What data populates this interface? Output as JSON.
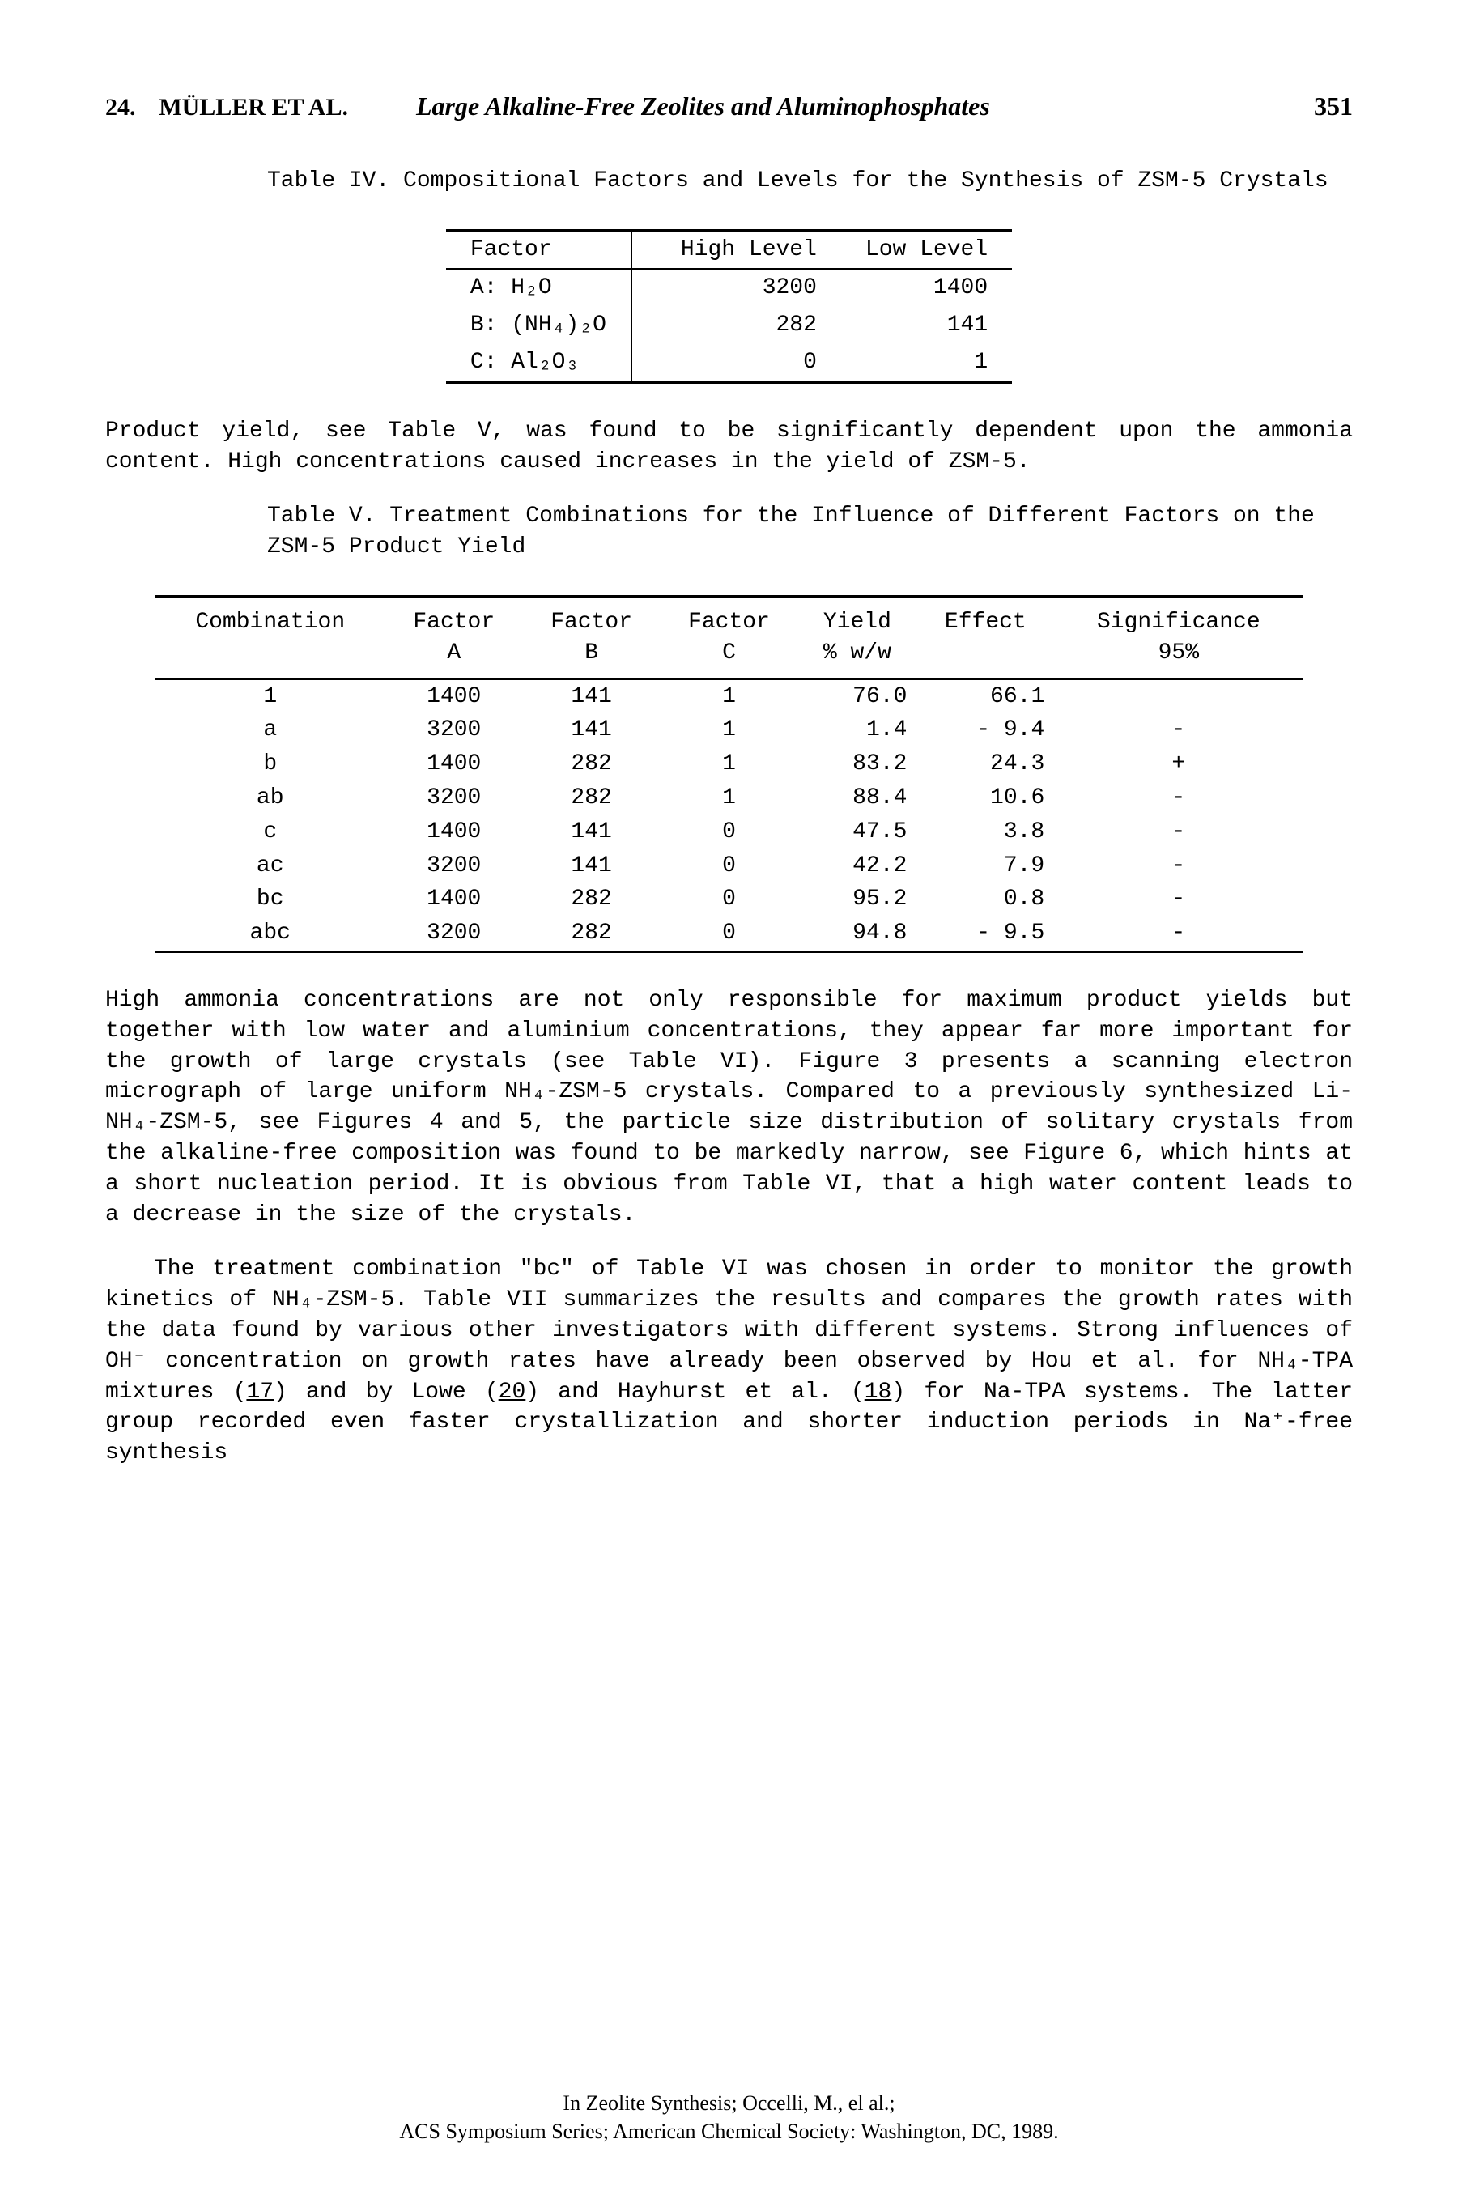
{
  "header": {
    "chapter": "24.",
    "authors": "MÜLLER ET AL.",
    "title": "Large Alkaline-Free Zeolites and Aluminophosphates",
    "page": "351"
  },
  "table4": {
    "caption_label": "Table IV.",
    "caption_text": "Compositional Factors and Levels for the Synthesis of ZSM-5 Crystals",
    "headers": [
      "Factor",
      "High Level",
      "Low Level"
    ],
    "rows": [
      {
        "factor": "A:  H₂O",
        "high": "3200",
        "low": "1400"
      },
      {
        "factor": "B: (NH₄)₂O",
        "high": "282",
        "low": "141"
      },
      {
        "factor": "C:  Al₂O₃",
        "high": "0",
        "low": "1"
      }
    ]
  },
  "para1": "Product yield, see Table V, was found to be significantly dependent upon the ammonia content. High concentrations caused increases in the yield of ZSM-5.",
  "table5": {
    "caption_label": "Table V.",
    "caption_text": "Treatment Combinations for the Influence of Different Factors on the ZSM-5 Product Yield",
    "headers": [
      "Combination",
      "Factor\nA",
      "Factor\nB",
      "Factor\nC",
      "Yield\n% w/w",
      "Effect",
      "Significance\n95%"
    ],
    "rows": [
      [
        "1",
        "1400",
        "141",
        "1",
        "76.0",
        "66.1",
        ""
      ],
      [
        "a",
        "3200",
        "141",
        "1",
        "1.4",
        "- 9.4",
        "-"
      ],
      [
        "b",
        "1400",
        "282",
        "1",
        "83.2",
        "24.3",
        "+"
      ],
      [
        "ab",
        "3200",
        "282",
        "1",
        "88.4",
        "10.6",
        "-"
      ],
      [
        "c",
        "1400",
        "141",
        "0",
        "47.5",
        "3.8",
        "-"
      ],
      [
        "ac",
        "3200",
        "141",
        "0",
        "42.2",
        "7.9",
        "-"
      ],
      [
        "bc",
        "1400",
        "282",
        "0",
        "95.2",
        "0.8",
        "-"
      ],
      [
        "abc",
        "3200",
        "282",
        "0",
        "94.8",
        "- 9.5",
        "-"
      ]
    ]
  },
  "para2_html": "High ammonia concentrations are not only responsible for maximum product yields but together with low water and aluminium concentrations, they appear far more important for the growth of large crystals (see Table VI). Figure 3 presents a scanning electron micrograph of large uniform NH₄-ZSM-5 crystals. Compared to a previously synthesized Li-NH₄-ZSM-5, see Figures 4 and 5, the particle size distribution of solitary crystals from the alkaline-free composition was found to be markedly narrow, see Figure 6, which hints at a short nucleation period. It is obvious from Table VI, that a high water content leads to a decrease in the size of the crystals.",
  "para3_html": "The treatment combination \"bc\" of Table VI was chosen in order to monitor the growth kinetics of NH₄-ZSM-5. Table VII summarizes the results and compares the growth rates with the data found by various other investigators with different systems. Strong influences of OH⁻ concentration on growth rates have already been observed by Hou et al. for NH₄-TPA mixtures (<span class=\"underline\">17</span>) and by Lowe (<span class=\"underline\">20</span>) and Hayhurst et al. (<span class=\"underline\">18</span>) for Na-TPA systems. The latter group recorded even faster crystallization and shorter induction periods in Na⁺-free synthesis",
  "footer": {
    "line1": "In Zeolite Synthesis; Occelli, M., el al.;",
    "line2": "ACS Symposium Series; American Chemical Society: Washington, DC, 1989."
  }
}
